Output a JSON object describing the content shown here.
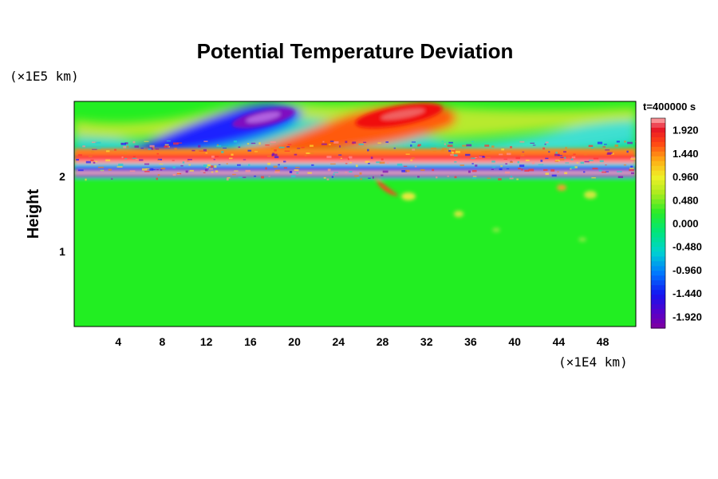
{
  "chart_data": {
    "type": "heatmap",
    "title": "Potential Temperature Deviation",
    "xlabel": "",
    "ylabel": "Height",
    "x_unit": "(×1E4 km)",
    "y_unit": "(×1E5 km)",
    "time_label": "t=400000 s",
    "xlim": [
      0,
      51
    ],
    "ylim": [
      0,
      3
    ],
    "x_ticks": [
      4,
      8,
      12,
      16,
      20,
      24,
      28,
      32,
      36,
      40,
      44,
      48
    ],
    "y_ticks": [
      1,
      2
    ],
    "colorbar": {
      "labels": [
        "1.920",
        "1.440",
        "0.960",
        "0.480",
        "0.000",
        "-0.480",
        "-0.960",
        "-1.440",
        "-1.920"
      ],
      "min": -2.16,
      "max": 2.16
    },
    "features": [
      {
        "name": "upper cold anomaly",
        "x": 19,
        "y": 2.75,
        "value": -1.9
      },
      {
        "name": "upper warm anomaly",
        "x": 29,
        "y": 2.75,
        "value": 1.9
      },
      {
        "name": "shear layer",
        "y": 2.05,
        "value": -1.9
      },
      {
        "name": "shear layer warm band",
        "y": 2.15,
        "value": 1.9
      }
    ]
  }
}
